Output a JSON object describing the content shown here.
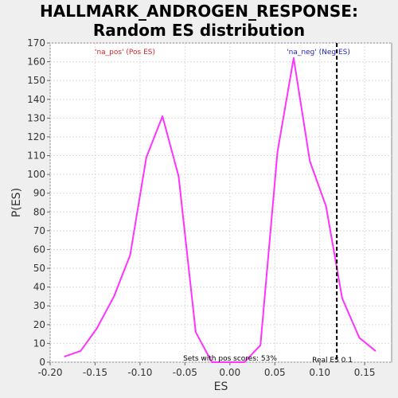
{
  "chart_data": {
    "type": "line",
    "title_line1": "HALLMARK_ANDROGEN_RESPONSE:",
    "title_line2": "Random ES distribution",
    "xlabel": "ES",
    "ylabel": "P(ES)",
    "xlim": [
      -0.2,
      0.18
    ],
    "ylim": [
      0,
      170
    ],
    "xticks": [
      -0.2,
      -0.15,
      -0.1,
      -0.05,
      0.0,
      0.05,
      0.1,
      0.15
    ],
    "xtick_labels": [
      "-0.20",
      "-0.15",
      "-0.10",
      "-0.05",
      "0.00",
      "0.05",
      "0.10",
      "0.15"
    ],
    "yticks": [
      0,
      10,
      20,
      30,
      40,
      50,
      60,
      70,
      80,
      90,
      100,
      110,
      120,
      130,
      140,
      150,
      160,
      170
    ],
    "grid": true,
    "series": [
      {
        "color": "#ff33ff",
        "x": [
          -0.184,
          -0.166,
          -0.148,
          -0.129,
          -0.111,
          -0.093,
          -0.075,
          -0.057,
          -0.038,
          -0.02,
          -0.002,
          0.016,
          0.034,
          0.053,
          0.071,
          0.089,
          0.107,
          0.125,
          0.144,
          0.162
        ],
        "y": [
          3,
          6,
          18,
          35,
          57,
          109,
          131,
          99,
          16,
          0,
          0,
          0,
          9,
          112,
          162,
          107,
          83,
          34,
          13,
          6
        ]
      }
    ],
    "real_es": 0.119,
    "annotations": {
      "pos_label": "'na_pos' (Pos ES)",
      "neg_label": "'na_neg' (Neg ES)",
      "pos_scores": "Sets with pos scores: 53%",
      "real_es_label": "Real ES 0.1"
    },
    "colors": {
      "pos": "#dd2222",
      "neg": "#2222cc",
      "line": "#ff33ff"
    }
  }
}
